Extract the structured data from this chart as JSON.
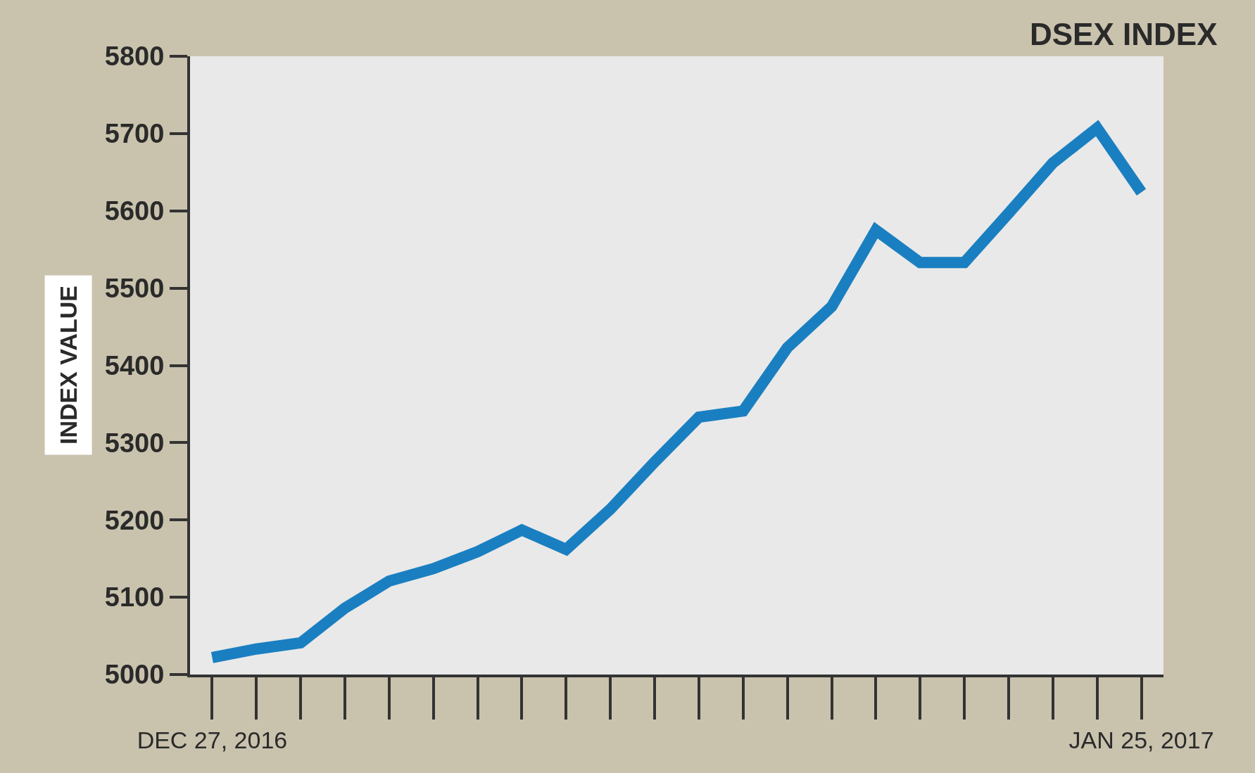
{
  "chart_data": {
    "type": "line",
    "title": "DSEX INDEX",
    "ylabel": "INDEX VALUE",
    "categories": [
      "DEC 27, 2016",
      null,
      null,
      null,
      null,
      null,
      null,
      null,
      null,
      null,
      null,
      null,
      null,
      null,
      null,
      null,
      null,
      null,
      null,
      null,
      null,
      "JAN 25, 2017"
    ],
    "series": [
      {
        "color": "#1a7fc1",
        "values": [
          5022,
          5033,
          5041,
          5086,
          5121,
          5137,
          5159,
          5187,
          5162,
          5214,
          5275,
          5333,
          5341,
          5423,
          5476,
          5575,
          5533,
          5533,
          5597,
          5662,
          5707,
          5624
        ]
      }
    ],
    "ylim": [
      5000,
      5800
    ],
    "yticks": [
      5000,
      5100,
      5200,
      5300,
      5400,
      5500,
      5600,
      5700,
      5800
    ],
    "grid": false,
    "legend": false,
    "marker": "none",
    "line_style": "solid"
  }
}
